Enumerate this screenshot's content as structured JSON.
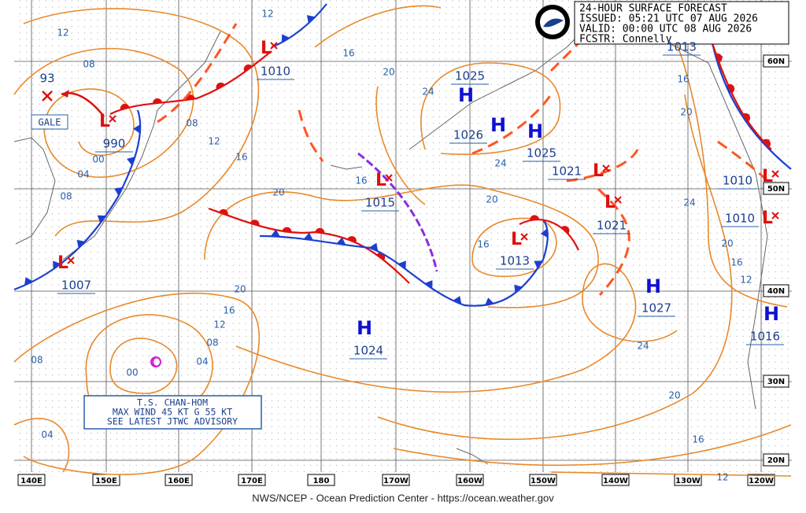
{
  "header": {
    "lines": [
      "24-HOUR SURFACE FORECAST",
      "ISSUED: 05:21 UTC 07 AUG 2026",
      "VALID:  00:00 UTC 08 AUG 2026",
      "FCSTR:  Connelly"
    ]
  },
  "footer": "NWS/NCEP - Ocean Prediction Center - https://ocean.weather.gov",
  "longitudes": [
    "140E",
    "150E",
    "160E",
    "170E",
    "180",
    "170W",
    "160W",
    "150W",
    "140W",
    "130W",
    "120W"
  ],
  "latitudes": [
    "60N",
    "50N",
    "40N",
    "30N",
    "20N"
  ],
  "storm_box": [
    "T.S. CHAN-HOM",
    "MAX WIND 45 KT G 55 KT",
    "SEE LATEST JTWC ADVISORY"
  ],
  "gale": "GALE",
  "old_center": "93",
  "centers": [
    {
      "type": "L",
      "pressure": "990"
    },
    {
      "type": "L",
      "pressure": "1010"
    },
    {
      "type": "H",
      "pressure": "1025"
    },
    {
      "type": "H",
      "pressure": "1026"
    },
    {
      "type": "H",
      "pressure": "1025"
    },
    {
      "type": "L",
      "pressure": "1021"
    },
    {
      "type": "L",
      "pressure": "1015"
    },
    {
      "type": "L",
      "pressure": "1021"
    },
    {
      "type": "L",
      "pressure": "1013"
    },
    {
      "type": "L",
      "pressure": "1007"
    },
    {
      "type": "H",
      "pressure": "1027"
    },
    {
      "type": "H",
      "pressure": "1024"
    },
    {
      "type": "L",
      "pressure": "1010"
    },
    {
      "type": "L",
      "pressure": "1010"
    },
    {
      "type": "H",
      "pressure": "1016"
    },
    {
      "pressure": "1013"
    }
  ],
  "isobar_labels": [
    "12",
    "12",
    "08",
    "16",
    "20",
    "24",
    "08",
    "12",
    "00",
    "04",
    "16",
    "08",
    "20",
    "16",
    "20",
    "24",
    "16",
    "16",
    "20",
    "24",
    "20",
    "16",
    "12",
    "20",
    "16",
    "12",
    "08",
    "04",
    "08",
    "00",
    "24",
    "20",
    "16",
    "12",
    "04"
  ]
}
